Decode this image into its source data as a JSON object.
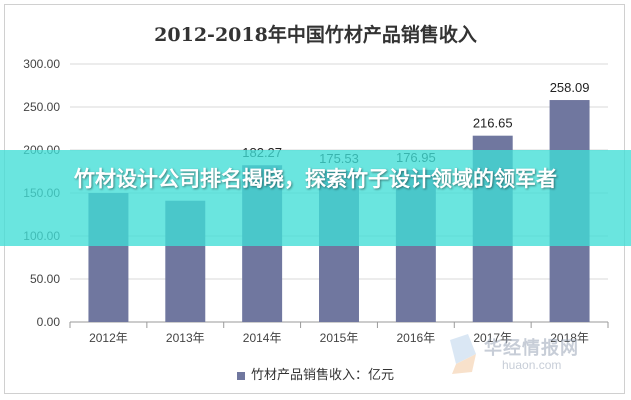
{
  "chart_data": {
    "type": "bar",
    "title": "2012-2018年中国竹材产品销售收入",
    "categories": [
      "2012年",
      "2013年",
      "2014年",
      "2015年",
      "2016年",
      "2017年",
      "2018年"
    ],
    "series": [
      {
        "name": "竹材产品销售收入：亿元",
        "values": [
          150.0,
          141.0,
          182.27,
          175.53,
          176.95,
          216.65,
          258.09
        ],
        "labels": [
          "",
          "",
          "182.27",
          "175.53",
          "176.95",
          "216.65",
          "258.09"
        ]
      }
    ],
    "y_ticks": [
      "0.00",
      "50.00",
      "100.00",
      "150.00",
      "200.00",
      "250.00",
      "300.00"
    ],
    "ylim": [
      0,
      300
    ],
    "grid": true,
    "legend_position": "bottom",
    "bar_color": "#70779f"
  },
  "banner": {
    "text": "竹材设计公司排名揭晓，探索竹子设计领域的领军者",
    "color": "#40ded6"
  },
  "watermark": {
    "name": "华经情报网",
    "url": "huaon.com"
  }
}
